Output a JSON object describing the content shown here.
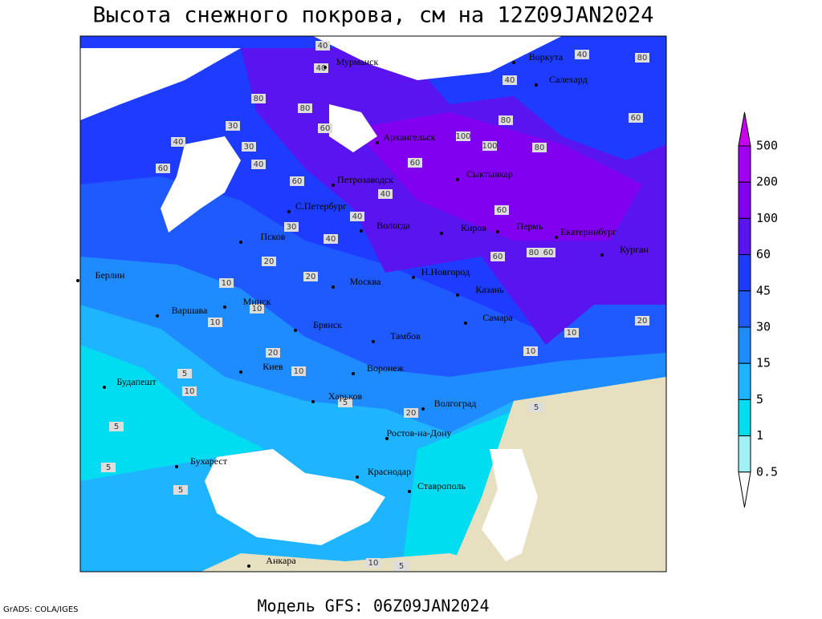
{
  "title": "Высота снежного покрова, см на 12Z09JAN2024",
  "footer": "Модель GFS: 06Z09JAN2024",
  "credit": "GrADS: COLA/IGES",
  "legend": {
    "levels": [
      500,
      200,
      100,
      60,
      45,
      30,
      15,
      5,
      1,
      0.5
    ],
    "colors": [
      "#c800f0",
      "#a000f0",
      "#8200f0",
      "#5a14f0",
      "#1e3cff",
      "#1e5aff",
      "#1e8cff",
      "#1eb4ff",
      "#00dcf0",
      "#a0f0f5",
      "#ffffff"
    ]
  },
  "cities": [
    "Мурманск",
    "Воркута",
    "Салехард",
    "Архангельск",
    "Сыктывкар",
    "Петрозаводск",
    "С.Петербург",
    "Вологда",
    "Киров",
    "Пермь",
    "Екатеринбург",
    "Курган",
    "Псков",
    "Н.Новгород",
    "Казань",
    "Москва",
    "Берлин",
    "Варшава",
    "Минск",
    "Брянск",
    "Тамбов",
    "Самара",
    "Киев",
    "Воронеж",
    "Будапешт",
    "Харьков",
    "Волгоград",
    "Ростов-на-Дону",
    "Бухарест",
    "Краснодар",
    "Ставрополь",
    "Анкара"
  ],
  "contour_labels": [
    40,
    40,
    80,
    30,
    60,
    80,
    60,
    40,
    30,
    40,
    60,
    40,
    100,
    100,
    80,
    80,
    40,
    40,
    80,
    60,
    60,
    40,
    40,
    30,
    60,
    80,
    60,
    60,
    20,
    10,
    20,
    10,
    10,
    20,
    10,
    5,
    10,
    5,
    5,
    5,
    20,
    10,
    10,
    20,
    5,
    5,
    10,
    5
  ]
}
